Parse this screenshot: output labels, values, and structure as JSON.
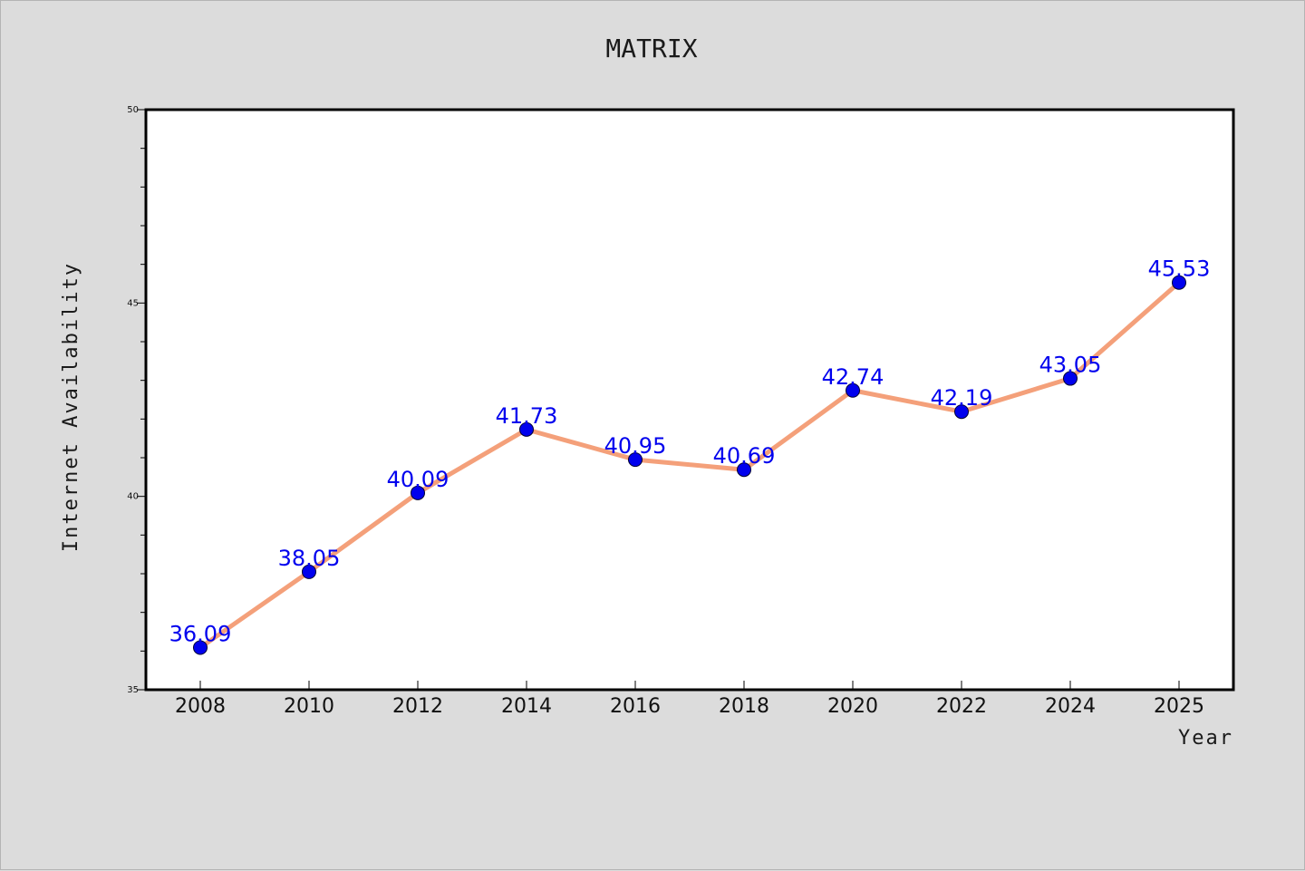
{
  "chart_data": {
    "type": "line",
    "title": "MATRIX",
    "xlabel": "Year",
    "ylabel": "Internet Availability",
    "x": [
      2008,
      2010,
      2012,
      2014,
      2016,
      2018,
      2020,
      2022,
      2024,
      2025
    ],
    "x_tick_labels": [
      "2008",
      "2010",
      "2012",
      "2014",
      "2016",
      "2018",
      "2020",
      "2022",
      "2024",
      "2025"
    ],
    "series": [
      {
        "values": [
          36.09,
          38.05,
          40.09,
          41.73,
          40.95,
          40.69,
          42.74,
          42.19,
          43.05,
          45.53
        ],
        "labels": [
          "36.09",
          "38.05",
          "40.09",
          "41.73",
          "40.95",
          "40.69",
          "42.74",
          "42.19",
          "43.05",
          "45.53"
        ]
      }
    ],
    "ylim": [
      35,
      50
    ],
    "y_major_ticks": [
      35,
      40,
      45,
      50
    ],
    "y_tick_labels": [
      "35",
      "40",
      "45",
      "50"
    ],
    "y_minor_step": 1,
    "grid": false,
    "colors": {
      "line": "#f4a07a",
      "marker": "#0000ee",
      "data_label": "#0000ee",
      "plot_background": "#ffffff",
      "figure_background": "#dcdcdc"
    }
  }
}
